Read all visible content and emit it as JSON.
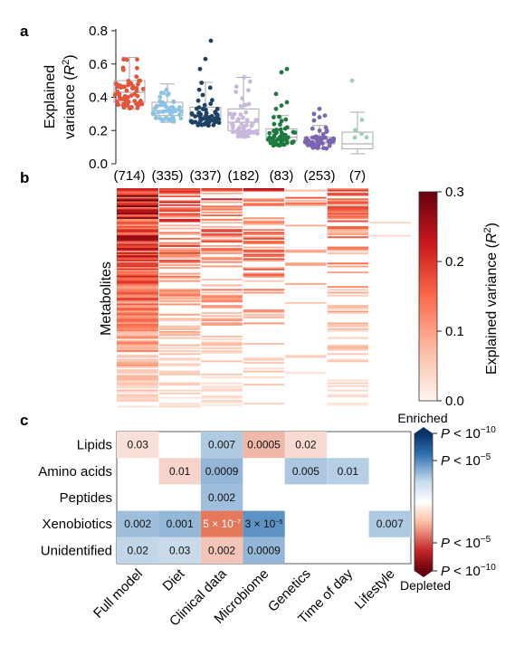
{
  "panels": {
    "a": "a",
    "b": "b",
    "c": "c"
  },
  "chart_data": [
    {
      "id": "a",
      "type": "box",
      "ylabel": "Explained variance (R²)",
      "ylabel_line1": "Explained",
      "ylabel_line2_prefix": "variance (",
      "ylabel_italic": "R",
      "ylabel_sup": "2",
      "ylabel_suffix": ")",
      "ylim": [
        0,
        0.8
      ],
      "yticks": [
        "0.0",
        "0.2",
        "0.4",
        "0.6",
        "0.8"
      ],
      "ytick_values": [
        0,
        0.2,
        0.4,
        0.6,
        0.8
      ],
      "categories": [
        "Full model",
        "Diet",
        "Clinical data",
        "Microbiome",
        "Genetics",
        "Time of day",
        "Lifestyle"
      ],
      "counts": [
        "(714)",
        "(335)",
        "(337)",
        "(182)",
        "(83)",
        "(253)",
        "(7)"
      ],
      "colors": [
        "#e2553b",
        "#8fc3e3",
        "#1d4263",
        "#c9b7dd",
        "#1c7a3e",
        "#7d64b3",
        "#9fd2b2"
      ],
      "box_stats": [
        {
          "min": 0.33,
          "q1": 0.37,
          "median": 0.43,
          "q3": 0.5,
          "max": 0.64
        },
        {
          "min": 0.25,
          "q1": 0.29,
          "median": 0.32,
          "q3": 0.37,
          "max": 0.48
        },
        {
          "min": 0.23,
          "q1": 0.26,
          "median": 0.29,
          "q3": 0.34,
          "max": 0.49
        },
        {
          "min": 0.16,
          "q1": 0.2,
          "median": 0.25,
          "q3": 0.33,
          "max": 0.52
        },
        {
          "min": 0.11,
          "q1": 0.14,
          "median": 0.16,
          "q3": 0.21,
          "max": 0.29
        },
        {
          "min": 0.09,
          "q1": 0.12,
          "median": 0.13,
          "q3": 0.16,
          "max": 0.23
        },
        {
          "min": 0.06,
          "q1": 0.09,
          "median": 0.12,
          "q3": 0.19,
          "max": 0.31
        }
      ],
      "outliers": [
        [],
        [],
        [
          0.57,
          0.63,
          0.74
        ],
        [],
        [
          0.33,
          0.35,
          0.37,
          0.42,
          0.55,
          0.57
        ],
        [
          0.26,
          0.28,
          0.29,
          0.3,
          0.33
        ],
        [
          0.5
        ]
      ]
    },
    {
      "id": "b",
      "type": "heatmap",
      "ylabel": "Metabolites",
      "colorbar_label": "Explained variance (R²)",
      "colorbar_label_prefix": "Explained variance (",
      "colorbar_italic": "R",
      "colorbar_sup": "2",
      "colorbar_suffix": ")",
      "colorbar_ticks": [
        "0.0",
        "0.1",
        "0.2",
        "0.3"
      ],
      "colorbar_tick_values": [
        0,
        0.1,
        0.2,
        0.3
      ],
      "vmin": 0,
      "vmax": 0.3,
      "columns": [
        "Full model",
        "Diet",
        "Clinical data",
        "Microbiome",
        "Genetics",
        "Time of day",
        "Lifestyle"
      ],
      "colors": [
        "#fff5f0",
        "#fcbba1",
        "#fb6a4a",
        "#cb181d",
        "#67000d"
      ],
      "rows": 714
    },
    {
      "id": "c",
      "type": "table",
      "rows": [
        "Lipids",
        "Amino acids",
        "Peptides",
        "Xenobiotics",
        "Unidentified"
      ],
      "columns": [
        "Full model",
        "Diet",
        "Clinical data",
        "Microbiome",
        "Genetics",
        "Time of day",
        "Lifestyle"
      ],
      "cells": [
        [
          {
            "v": "0.03",
            "d": "e",
            "s": 1.5
          },
          null,
          {
            "v": "0.007",
            "d": "d",
            "s": 2.2
          },
          {
            "v": "0.0005",
            "d": "e",
            "s": 3.3
          },
          {
            "v": "0.02",
            "d": "e",
            "s": 1.7
          },
          null,
          null
        ],
        [
          null,
          {
            "v": "0.01",
            "d": "e",
            "s": 2.0
          },
          {
            "v": "0.0009",
            "d": "d",
            "s": 3.0
          },
          null,
          {
            "v": "0.005",
            "d": "d",
            "s": 2.3
          },
          {
            "v": "0.01",
            "d": "d",
            "s": 2.0
          },
          null
        ],
        [
          null,
          null,
          {
            "v": "0.002",
            "d": "d",
            "s": 2.7
          },
          null,
          null,
          null,
          null
        ],
        [
          {
            "v": "0.002",
            "d": "d",
            "s": 2.7
          },
          {
            "v": "0.001",
            "d": "d",
            "s": 3.0
          },
          {
            "v": "5 × 10",
            "sup": "−7",
            "d": "e",
            "s": 6.3
          },
          {
            "v": "3 × 10",
            "sup": "−5",
            "d": "d",
            "s": 4.5
          },
          null,
          null,
          {
            "v": "0.007",
            "d": "d",
            "s": 2.2
          }
        ],
        [
          {
            "v": "0.02",
            "d": "d",
            "s": 1.7
          },
          {
            "v": "0.03",
            "d": "d",
            "s": 1.5
          },
          {
            "v": "0.002",
            "d": "e",
            "s": 2.7
          },
          {
            "v": "0.0009",
            "d": "d",
            "s": 3.0
          },
          null,
          null,
          null
        ]
      ],
      "colorbar_top": "Enriched",
      "colorbar_bottom": "Depleted",
      "colorbar_ticks": [
        {
          "prefix": "P",
          "mid": " < 10",
          "sup": "−10",
          "pos": "top"
        },
        {
          "prefix": "P",
          "mid": " < 10",
          "sup": "−5",
          "pos": "upper"
        },
        {
          "prefix": "P",
          "mid": " < 10",
          "sup": "−5",
          "pos": "lower"
        },
        {
          "prefix": "P",
          "mid": " < 10",
          "sup": "−10",
          "pos": "bottom"
        }
      ]
    }
  ]
}
